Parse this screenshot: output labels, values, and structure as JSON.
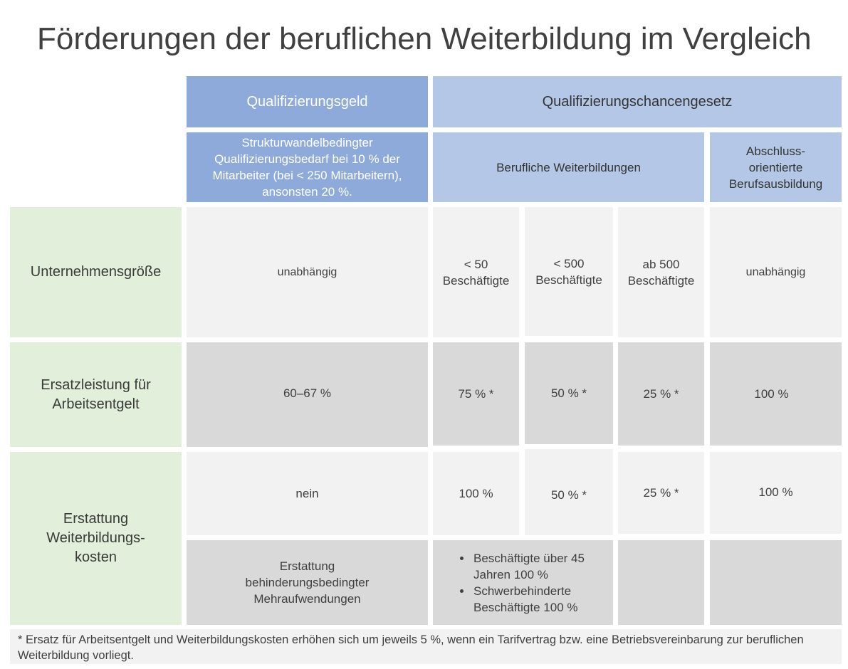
{
  "title": "Förderungen der beruflichen Weiterbildung im Vergleich",
  "header": {
    "qualifizierungsgeld": "Qualifizierungsgeld",
    "qualifizierungschancengesetz": "Qualifizierungschancengesetz",
    "qg_description": "Strukturwandelbedingter\nQualifizierungsbedarf bei 10 % der\nMitarbeiter (bei < 250 Mitarbeitern),\nansonsten 20 %.",
    "berufliche_weiterbildungen": "Berufliche Weiterbildungen",
    "abschlussorientierte": "Abschluss-\norientierte\nBerufsausbildung"
  },
  "rows": {
    "unternehmensgroesse": {
      "label": "Unternehmensgröße",
      "qg": "unabhängig",
      "lt50": "< 50\nBeschäftigte",
      "lt500": "< 500\nBeschäftigte",
      "ab500": "ab 500\nBeschäftigte",
      "abschluss": "unabhängig"
    },
    "ersatzleistung": {
      "label": "Ersatzleistung für\nArbeitsentgelt",
      "qg": "60–67 %",
      "lt50": "75 % *",
      "lt500": "50 % *",
      "ab500": "25 % *",
      "abschluss": "100 %"
    },
    "erstattung": {
      "label": "Erstattung\nWeiterbildungs-\nkosten",
      "qg": "nein",
      "lt50": "100 %",
      "lt500": "50 % *",
      "ab500": "25 % *",
      "abschluss": "100 %",
      "qg_extra": "Erstattung\nbehinderungsbedingter\nMehraufwendungen",
      "bullets": [
        "Beschäftigte über 45 Jahren 100 %",
        "Schwerbehinderte Beschäftigte 100 %"
      ]
    }
  },
  "footnote": "* Ersatz für Arbeitsentgelt und Weiterbildungskosten erhöhen sich um jeweils 5 %, wenn ein Tarifvertrag bzw. eine Betriebsvereinbarung zur beruflichen Weiterbildung vorliegt.",
  "colors": {
    "header_dark": "#8eaadb",
    "header_light": "#b4c7e7",
    "row_label": "#e2efda",
    "cell_light": "#f2f2f2",
    "cell_grey": "#d9d9d9"
  }
}
